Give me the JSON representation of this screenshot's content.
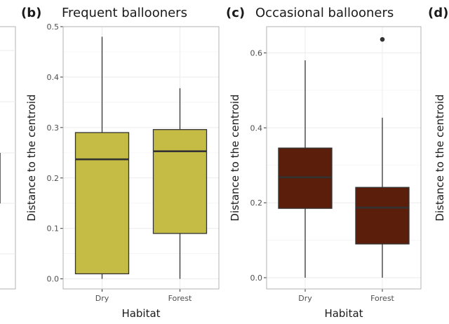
{
  "chart_data": [
    {
      "type": "box",
      "panel_label": "(b)",
      "title": "Frequent ballooners",
      "xlabel": "Habitat",
      "ylabel": "Distance to the centroid",
      "categories": [
        "Dry",
        "Forest"
      ],
      "ylim": [
        -0.02,
        0.5
      ],
      "yticks": [
        0.0,
        0.1,
        0.2,
        0.3,
        0.4,
        0.5
      ],
      "ytick_labels": [
        "0.0",
        "0.1",
        "0.2",
        "0.3",
        "0.4",
        "0.5"
      ],
      "fill": "#c4bc44",
      "grid": true,
      "boxes": [
        {
          "category": "Dry",
          "min": 0.0,
          "q1": 0.01,
          "median": 0.237,
          "q3": 0.29,
          "max": 0.48,
          "outliers": []
        },
        {
          "category": "Forest",
          "min": 0.0,
          "q1": 0.09,
          "median": 0.253,
          "q3": 0.296,
          "max": 0.378,
          "outliers": []
        }
      ]
    },
    {
      "type": "box",
      "panel_label": "(c)",
      "title": "Occasional ballooners",
      "xlabel": "Habitat",
      "ylabel": "Distance to the centroid",
      "categories": [
        "Dry",
        "Forest"
      ],
      "ylim": [
        -0.03,
        0.67
      ],
      "yticks": [
        0.0,
        0.2,
        0.4,
        0.6
      ],
      "ytick_labels": [
        "0.0",
        "0.2",
        "0.4",
        "0.6"
      ],
      "fill": "#5a1e0a",
      "grid": true,
      "boxes": [
        {
          "category": "Dry",
          "min": 0.0,
          "q1": 0.185,
          "median": 0.268,
          "q3": 0.346,
          "max": 0.58,
          "outliers": []
        },
        {
          "category": "Forest",
          "min": 0.0,
          "q1": 0.09,
          "median": 0.187,
          "q3": 0.241,
          "max": 0.427,
          "outliers": [
            0.636
          ]
        }
      ]
    }
  ],
  "partial_panel_right": {
    "panel_label": "(d)",
    "ylabel": "Distance to the centroid"
  }
}
